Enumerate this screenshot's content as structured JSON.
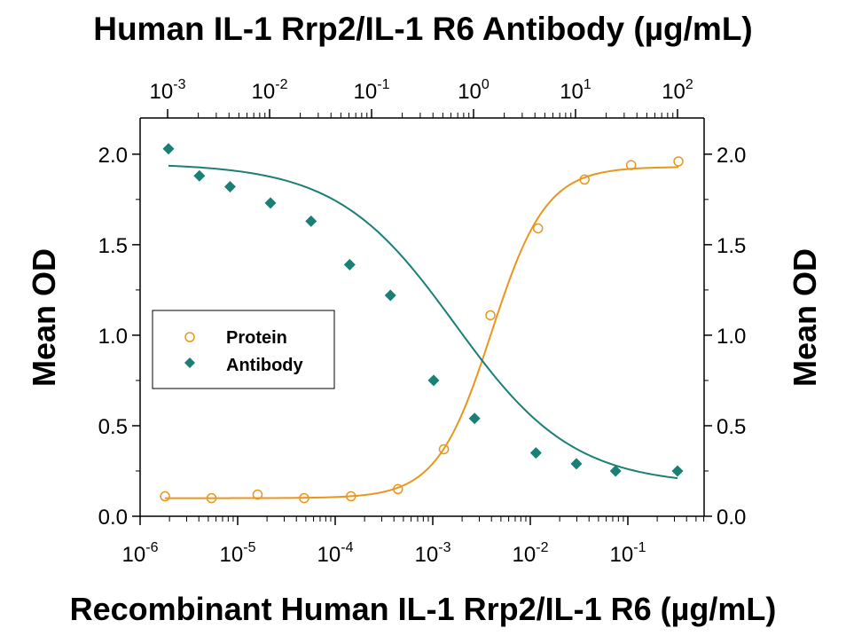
{
  "chart_data": {
    "type": "scatter",
    "title_top": "Human IL-1 Rrp2/IL-1 R6 Antibody (µg/mL)",
    "xlabel_bottom": "Recombinant Human IL-1 Rrp2/IL-1 R6 (µg/mL)",
    "ylabel_left": "Mean OD",
    "ylabel_right": "Mean OD",
    "x_bottom_scale": "log",
    "x_bottom_lim": [
      1e-06,
      0.7
    ],
    "x_bottom_ticks": [
      {
        "base": "10",
        "exp": "-6",
        "value": 1e-06
      },
      {
        "base": "10",
        "exp": "-5",
        "value": 1e-05
      },
      {
        "base": "10",
        "exp": "-4",
        "value": 0.0001
      },
      {
        "base": "10",
        "exp": "-3",
        "value": 0.001
      },
      {
        "base": "10",
        "exp": "-2",
        "value": 0.01
      },
      {
        "base": "10",
        "exp": "-1",
        "value": 0.1
      }
    ],
    "x_top_scale": "log",
    "x_top_ticks": [
      {
        "base": "10",
        "exp": "-3",
        "value": 0.001
      },
      {
        "base": "10",
        "exp": "-2",
        "value": 0.01
      },
      {
        "base": "10",
        "exp": "-1",
        "value": 0.1
      },
      {
        "base": "10",
        "exp": "0",
        "value": 1
      },
      {
        "base": "10",
        "exp": "1",
        "value": 10
      },
      {
        "base": "10",
        "exp": "2",
        "value": 100
      }
    ],
    "ylim": [
      0,
      2.2
    ],
    "y_ticks": [
      "0.0",
      "0.5",
      "1.0",
      "1.5",
      "2.0"
    ],
    "grid": false,
    "legend_position": "middle-left",
    "series": [
      {
        "name": "Protein",
        "axis": "bottom",
        "marker": "open-circle",
        "color": "#E8961E",
        "x": [
          1.8e-06,
          5.4e-06,
          1.6e-05,
          4.8e-05,
          0.000145,
          0.00044,
          0.0013,
          0.0039,
          0.012,
          0.036,
          0.108,
          0.33
        ],
        "y": [
          0.11,
          0.1,
          0.12,
          0.1,
          0.11,
          0.15,
          0.37,
          1.11,
          1.59,
          1.86,
          1.94,
          1.96
        ],
        "fit": {
          "bottom": 0.1,
          "top": 1.93,
          "ec50": 0.004,
          "hill": 1.55
        }
      },
      {
        "name": "Antibody",
        "axis": "top",
        "marker": "filled-diamond",
        "color": "#1A7F74",
        "x": [
          0.00102,
          0.00205,
          0.0041,
          0.0102,
          0.0255,
          0.061,
          0.153,
          0.406,
          1.023,
          4.09,
          10.2,
          24.7,
          100.0
        ],
        "y": [
          2.03,
          1.88,
          1.82,
          1.73,
          1.63,
          1.39,
          1.22,
          0.75,
          0.54,
          0.35,
          0.29,
          0.25,
          0.25
        ],
        "fit": {
          "bottom": 0.17,
          "top": 1.95,
          "ec50": 0.66,
          "hill": 0.75
        }
      }
    ]
  }
}
